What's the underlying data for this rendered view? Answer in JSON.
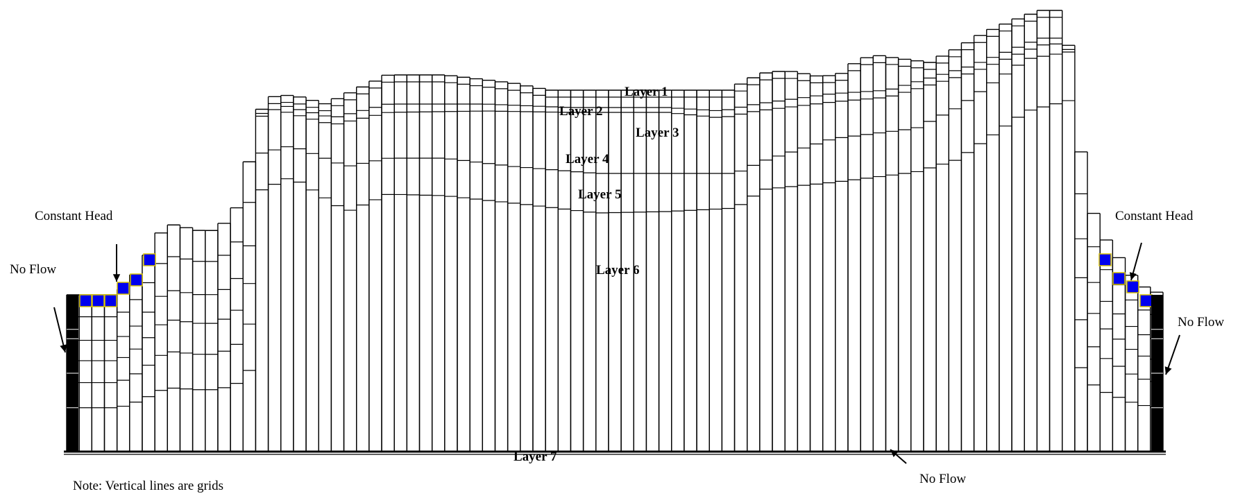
{
  "layers": {
    "layer_1": "Layer 1",
    "layer_2": "Layer 2",
    "layer_3": "Layer 3",
    "layer_4": "Layer 4",
    "layer_5": "Layer 5",
    "layer_6": "Layer 6",
    "layer_7": "Layer 7"
  },
  "boundaries": {
    "constant_head_left": "Constant Head",
    "constant_head_right": "Constant Head",
    "no_flow_left": "No Flow",
    "no_flow_right": "No Flow",
    "no_flow_bottom": "No Flow"
  },
  "note": "Note: Vertical lines are grids",
  "colors": {
    "grid_line": "#000000",
    "constant_head_cell": "#0000ee",
    "constant_head_border": "#d9c400",
    "no_flow_bar": "#000000"
  }
}
